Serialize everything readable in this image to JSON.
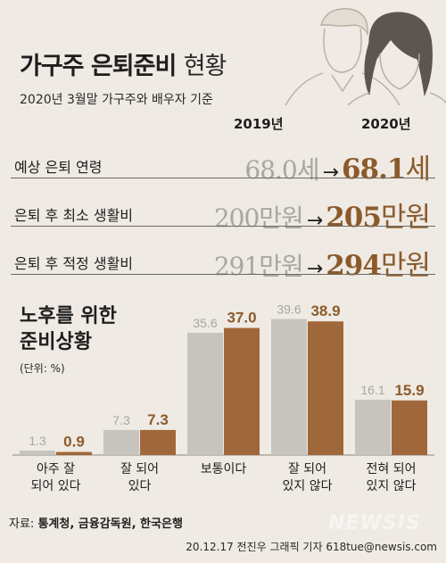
{
  "header": {
    "title_bold": "가구주 은퇴준비",
    "title_thin": "현황",
    "subtitle": "2020년 3월말 가구주와 배우자 기준"
  },
  "years": {
    "prev": "2019년",
    "curr": "2020년"
  },
  "summary": [
    {
      "label": "예상 은퇴 연령",
      "prev_value": "68.0",
      "curr_value": "68.1",
      "unit": "세"
    },
    {
      "label": "은퇴 후 최소 생활비",
      "prev_value": "200",
      "curr_value": "205",
      "unit": "만원"
    },
    {
      "label": "은퇴 후 적정 생활비",
      "prev_value": "291",
      "curr_value": "294",
      "unit": "만원"
    }
  ],
  "arrow": "→",
  "chart_title_line1": "노후를 위한",
  "chart_title_line2": "준비상황",
  "chart_unit": "(단위: %)",
  "colors": {
    "prev": "#c7c4c0",
    "curr": "#a0683a",
    "curr_text": "#8b5a2b",
    "prev_text": "#a9a6a2"
  },
  "chart_data": {
    "type": "bar",
    "categories": [
      [
        "아주 잘",
        "되어 있다"
      ],
      [
        "잘 되어",
        "있다"
      ],
      [
        "보통이다"
      ],
      [
        "잘 되어",
        "있지 않다"
      ],
      [
        "전혀 되어",
        "있지 않다"
      ]
    ],
    "series": [
      {
        "name": "2019년",
        "values": [
          1.3,
          7.3,
          35.6,
          39.6,
          16.1
        ]
      },
      {
        "name": "2020년",
        "values": [
          0.9,
          7.3,
          37.0,
          38.9,
          15.9
        ]
      }
    ],
    "ylim": [
      0,
      40
    ]
  },
  "source_label": "자료:",
  "source_orgs": "통계청, 금융감독원, 한국은행",
  "credit": "20.12.17 전진우 그래픽 기자 618tue@newsis.com",
  "watermark": "NEWSIS"
}
